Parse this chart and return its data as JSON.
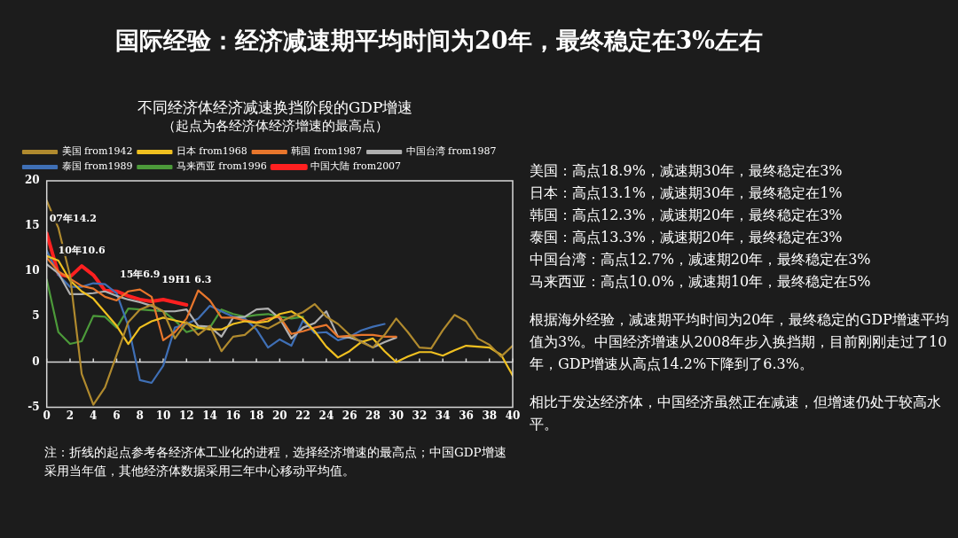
{
  "chart_data": {
    "type": "line",
    "title": "不同经济体经济减速换挡阶段的GDP增速",
    "subtitle": "（起点为各经济体经济增速的最高点）",
    "x": [
      0,
      1,
      2,
      3,
      4,
      5,
      6,
      7,
      8,
      9,
      10,
      11,
      12,
      13,
      14,
      15,
      16,
      17,
      18,
      19,
      20,
      21,
      22,
      23,
      24,
      25,
      26,
      27,
      28,
      29,
      30,
      31,
      32,
      33,
      34,
      35,
      36,
      37,
      38,
      39,
      40
    ],
    "xlim": [
      0,
      40
    ],
    "xticks": [
      0,
      2,
      4,
      6,
      8,
      10,
      12,
      14,
      16,
      18,
      20,
      22,
      24,
      26,
      28,
      30,
      32,
      34,
      36,
      38,
      40
    ],
    "ylim": [
      -5,
      20
    ],
    "yticks": [
      -5,
      0,
      5,
      10,
      15,
      20
    ],
    "grid": false,
    "legend": "top",
    "ref_lines": [
      {
        "axis": "y",
        "value": 0
      }
    ],
    "marker": "none",
    "line_style": "solid",
    "series": [
      {
        "name": "美国 from1942",
        "color": "#b08a2e",
        "values": [
          17.8,
          14.8,
          9.5,
          -1.3,
          -4.7,
          -2.8,
          0.8,
          4.4,
          5.8,
          6.3,
          5.6,
          2.6,
          4.4,
          3.0,
          4.0,
          1.2,
          2.8,
          3.0,
          4.1,
          3.7,
          4.4,
          5.0,
          5.5,
          6.4,
          5.0,
          4.2,
          3.0,
          2.2,
          1.6,
          3.0,
          4.8,
          3.3,
          1.6,
          1.5,
          3.5,
          5.2,
          4.5,
          2.6,
          1.9,
          0.6,
          1.8
        ]
      },
      {
        "name": "日本 from1968",
        "color": "#f0c020",
        "values": [
          11.7,
          11.2,
          9.0,
          7.8,
          7.0,
          5.5,
          4.0,
          2.0,
          3.8,
          4.5,
          4.9,
          4.6,
          4.3,
          3.8,
          3.6,
          3.6,
          4.2,
          4.5,
          4.3,
          4.5,
          5.3,
          5.6,
          4.8,
          3.4,
          1.7,
          0.5,
          1.2,
          2.2,
          2.6,
          1.2,
          0.0,
          0.6,
          1.1,
          1.1,
          0.7,
          1.3,
          1.8,
          1.7,
          1.6,
          0.8,
          -1.5
        ]
      },
      {
        "name": "韩国 from1987",
        "color": "#e8762c",
        "values": [
          11.5,
          10.0,
          9.2,
          8.4,
          8.1,
          7.2,
          6.8,
          7.8,
          8.0,
          7.2,
          2.4,
          3.3,
          4.8,
          7.9,
          6.8,
          4.9,
          4.9,
          4.6,
          4.4,
          4.8,
          5.0,
          3.1,
          3.4,
          3.8,
          4.1,
          2.8,
          2.9,
          3.0,
          3.0,
          2.8,
          2.8,
          null,
          null,
          null,
          null,
          null,
          null,
          null,
          null,
          null,
          null
        ]
      },
      {
        "name": "中国台湾 from1987",
        "color": "#b0b0b0",
        "values": [
          10.8,
          9.8,
          7.5,
          7.5,
          7.6,
          7.8,
          7.3,
          6.9,
          6.6,
          6.2,
          5.6,
          5.6,
          5.8,
          4.0,
          3.9,
          2.8,
          4.9,
          5.0,
          5.8,
          5.9,
          4.8,
          2.6,
          3.8,
          4.3,
          5.6,
          2.8,
          2.7,
          2.3,
          1.6,
          2.2,
          2.7,
          null,
          null,
          null,
          null,
          null,
          null,
          null,
          null,
          null,
          null
        ]
      },
      {
        "name": "泰国 from1989",
        "color": "#3f6fb5",
        "values": [
          12.3,
          9.6,
          8.3,
          8.3,
          8.7,
          8.6,
          7.6,
          4.0,
          -2.0,
          -2.3,
          -0.4,
          3.8,
          4.2,
          4.8,
          6.2,
          5.6,
          5.0,
          4.8,
          3.6,
          1.6,
          2.5,
          1.8,
          4.6,
          3.2,
          3.3,
          2.4,
          2.8,
          3.5,
          3.9,
          4.2,
          null,
          null,
          null,
          null,
          null,
          null,
          null,
          null,
          null,
          null,
          null
        ]
      },
      {
        "name": "马来西亚 from1996",
        "color": "#4c9a3a",
        "values": [
          9.1,
          3.3,
          2.0,
          2.3,
          5.1,
          5.0,
          3.8,
          5.9,
          5.8,
          5.7,
          5.6,
          4.6,
          3.3,
          3.7,
          3.8,
          5.8,
          5.3,
          5.0,
          5.2,
          5.3,
          5.0,
          4.8,
          5.0,
          null,
          null,
          null,
          null,
          null,
          null,
          null,
          null,
          null,
          null,
          null,
          null,
          null,
          null,
          null,
          null,
          null,
          null
        ]
      },
      {
        "name": "中国大陆 from2007",
        "color": "#ff2020",
        "values": [
          14.2,
          9.7,
          9.4,
          10.6,
          9.6,
          7.9,
          7.8,
          7.3,
          6.9,
          6.7,
          6.9,
          6.6,
          6.3,
          null,
          null,
          null,
          null,
          null,
          null,
          null,
          null,
          null,
          null,
          null,
          null,
          null,
          null,
          null,
          null,
          null,
          null,
          null,
          null,
          null,
          null,
          null,
          null,
          null,
          null,
          null,
          null
        ]
      }
    ],
    "annotations": [
      {
        "text": "07年14.2",
        "x": 0,
        "y": 14.2
      },
      {
        "text": "10年10.6",
        "x": 3,
        "y": 10.6
      },
      {
        "text": "15年6.9",
        "x": 8,
        "y": 6.9
      },
      {
        "text": "19H1 6.3",
        "x": 12,
        "y": 6.3
      },
      "国际经验：经济减速期平均时间为20年，最终稳定在3%左右",
      "美国：高点18.9%，减速期30年，最终稳定在3%",
      "日本：高点13.1%，减速期30年，最终稳定在1%",
      "韩国：高点12.3%，减速期20年，最终稳定在3%",
      "泰国：高点13.3%，减速期20年，最终稳定在3%",
      "中国台湾：高点12.7%，减速期20年，最终稳定在3%",
      "马来西亚：高点10.0%，减速期10年，最终稳定在5%",
      "根据海外经验，减速期平均时间为20年，最终稳定的GDP增速平均值为3%。中国经济增速从2008年步入换挡期，目前刚刚走过了10年，GDP增速从高点14.2%下降到了6.3%。",
      "相比于发达经济体，中国经济虽然正在减速，但增速仍处于较高水平。",
      "注：折线的起点参考各经济体工业化的进程，选择经济增速的最高点；中国GDP增速采用当年值，其他经济体数据采用三年中心移动平均值。"
    ]
  }
}
